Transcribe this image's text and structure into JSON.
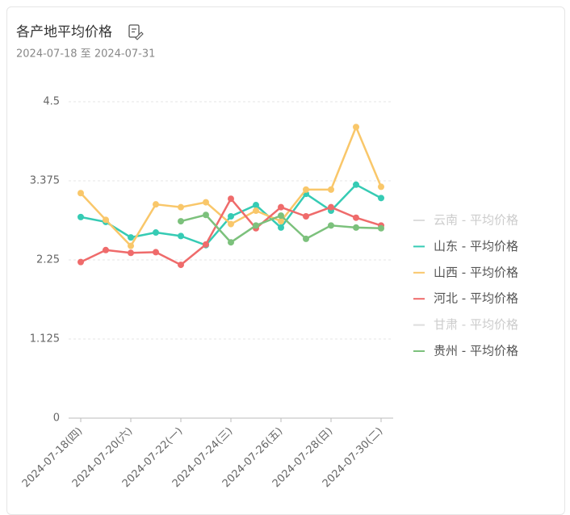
{
  "chart_data": {
    "type": "line",
    "title": "各产地平均价格",
    "subtitle": "2024-07-18 至 2024-07-31",
    "categories": [
      "2024-07-18(四)",
      null,
      "2024-07-20(六)",
      null,
      "2024-07-22(一)",
      null,
      "2024-07-24(三)",
      null,
      "2024-07-26(五)",
      null,
      "2024-07-28(日)",
      null,
      "2024-07-30(二)"
    ],
    "series": [
      {
        "name": "云南 - 平均价格",
        "color": "#dddddd",
        "visible": false,
        "values": [
          null,
          null,
          null,
          null,
          null,
          null,
          null,
          null,
          null,
          null,
          null,
          null,
          null
        ]
      },
      {
        "name": "山东 - 平均价格",
        "color": "#36cbb4",
        "visible": true,
        "values": [
          2.86,
          2.79,
          2.57,
          2.64,
          2.59,
          2.46,
          2.87,
          3.03,
          2.71,
          3.19,
          2.95,
          3.32,
          3.13
        ]
      },
      {
        "name": "山西 - 平均价格",
        "color": "#f9c76a",
        "visible": true,
        "values": [
          3.2,
          2.82,
          2.45,
          3.04,
          3.0,
          3.07,
          2.76,
          2.95,
          2.8,
          3.25,
          3.25,
          4.14,
          3.29
        ]
      },
      {
        "name": "河北 - 平均价格",
        "color": "#ef6b6b",
        "visible": true,
        "values": [
          2.22,
          2.39,
          2.35,
          2.36,
          2.18,
          2.47,
          3.12,
          2.7,
          3.0,
          2.87,
          3.0,
          2.85,
          2.74
        ]
      },
      {
        "name": "甘肃 - 平均价格",
        "color": "#dddddd",
        "visible": false,
        "values": [
          null,
          null,
          null,
          null,
          null,
          null,
          null,
          null,
          null,
          null,
          null,
          null,
          null
        ]
      },
      {
        "name": "贵州 - 平均价格",
        "color": "#7cc17c",
        "visible": true,
        "values": [
          null,
          null,
          null,
          null,
          2.8,
          2.89,
          2.5,
          2.74,
          2.88,
          2.55,
          2.74,
          2.71,
          2.7
        ]
      }
    ],
    "ylim": [
      0,
      4.5
    ],
    "yticks": [
      0,
      1.125,
      2.25,
      3.375,
      4.5
    ],
    "grid": true,
    "legend": "right"
  }
}
